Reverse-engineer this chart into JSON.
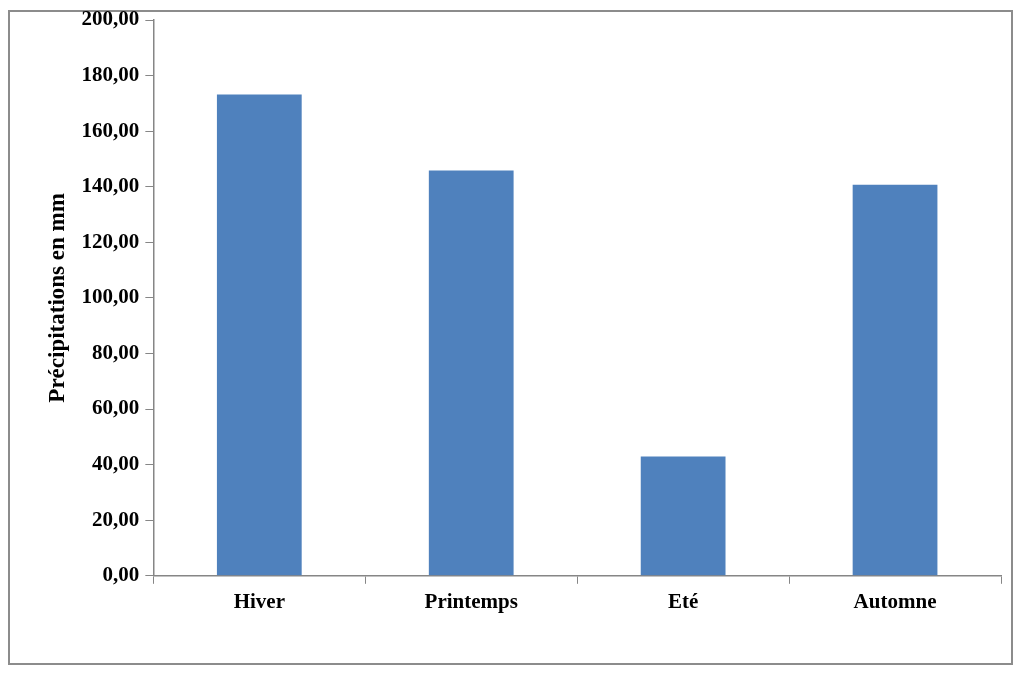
{
  "chart_data": {
    "type": "bar",
    "ylabel": "Précipitations en mm",
    "categories": [
      "Hiver",
      "Printemps",
      "Eté",
      "Automne"
    ],
    "values": [
      173.2,
      145.8,
      42.9,
      140.7
    ],
    "color": "#4f81bd",
    "ylim": [
      0,
      200
    ],
    "yticks": [
      {
        "value": 0,
        "label": "0,00"
      },
      {
        "value": 20,
        "label": "20,00"
      },
      {
        "value": 40,
        "label": "40,00"
      },
      {
        "value": 60,
        "label": "60,00"
      },
      {
        "value": 80,
        "label": "80,00"
      },
      {
        "value": 100,
        "label": "100,00"
      },
      {
        "value": 120,
        "label": "120,00"
      },
      {
        "value": 140,
        "label": "140,00"
      },
      {
        "value": 160,
        "label": "160,00"
      },
      {
        "value": 180,
        "label": "180,00"
      },
      {
        "value": 200,
        "label": "200,00"
      }
    ],
    "grid": false,
    "legend": false
  }
}
